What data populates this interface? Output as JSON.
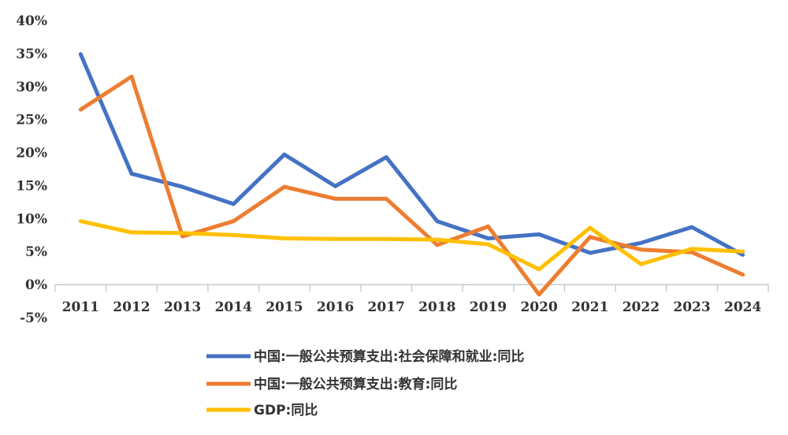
{
  "chart_data": {
    "type": "line",
    "categories": [
      "2011",
      "2012",
      "2013",
      "2014",
      "2015",
      "2016",
      "2017",
      "2018",
      "2019",
      "2020",
      "2021",
      "2022",
      "2023",
      "2024"
    ],
    "ylim": [
      -5,
      40
    ],
    "yticks": [
      -5,
      0,
      5,
      10,
      15,
      20,
      25,
      30,
      35,
      40
    ],
    "ytick_labels": [
      "-5%",
      "0%",
      "5%",
      "10%",
      "15%",
      "20%",
      "25%",
      "30%",
      "35%",
      "40%"
    ],
    "grid": false,
    "legend_position": "bottom",
    "series": [
      {
        "name": "中国:一般公共预算支出:社会保障和就业:同比",
        "color": "#4472C4",
        "values": [
          34.9,
          16.8,
          14.8,
          12.2,
          19.7,
          14.9,
          19.3,
          9.6,
          7.0,
          7.6,
          4.8,
          6.3,
          8.7,
          4.5
        ]
      },
      {
        "name": "中国:一般公共预算支出:教育:同比",
        "color": "#ED7D31",
        "values": [
          26.5,
          31.5,
          7.3,
          9.6,
          14.8,
          13.0,
          13.0,
          6.0,
          8.8,
          -1.5,
          7.2,
          5.3,
          4.9,
          1.5
        ]
      },
      {
        "name": "GDP:同比",
        "color": "#FFC000",
        "values": [
          9.6,
          7.9,
          7.8,
          7.5,
          7.0,
          6.9,
          6.9,
          6.8,
          6.1,
          2.3,
          8.6,
          3.1,
          5.4,
          5.0
        ]
      }
    ]
  }
}
